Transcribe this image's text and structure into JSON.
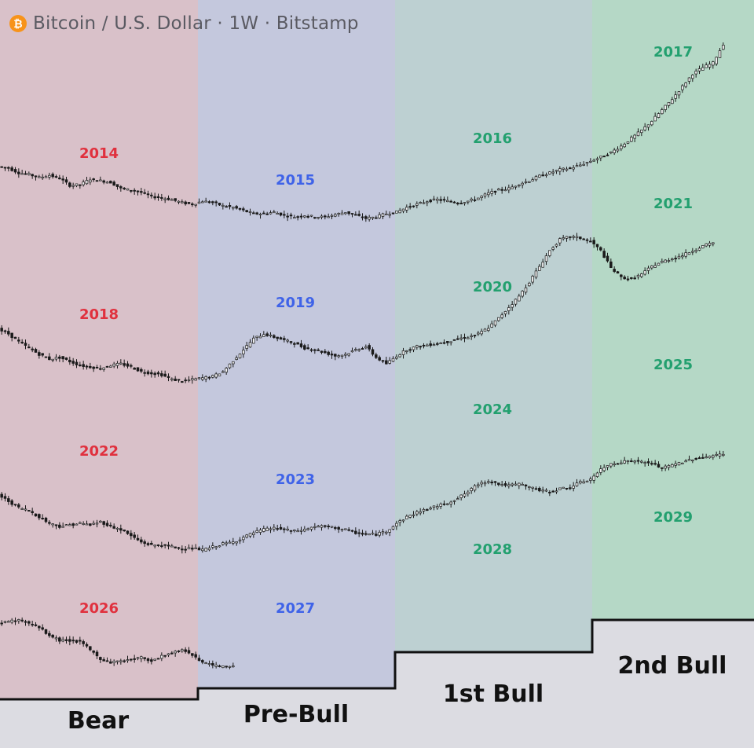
{
  "title": "Bitcoin / U.S. Dollar · 1W · Bitstamp",
  "icon": "bitcoin-icon",
  "colors": {
    "bear_bg": "#d9c1c9",
    "prebull_bg": "#c4c8dd",
    "bull1_bg": "#bdd0d2",
    "bull2_bg": "#b5d8c6",
    "base_bg": "#dcdce2",
    "bear_text": "#e0313e",
    "prebull_text": "#3f63e8",
    "bull_text": "#23a06f",
    "candle": "#1a1a1a"
  },
  "chart_data": {
    "type": "line",
    "x_axis": "week within the 4-year cycle",
    "phases": [
      {
        "name": "Bear",
        "color_key": "bear"
      },
      {
        "name": "Pre-Bull",
        "color_key": "prebull"
      },
      {
        "name": "1st Bull",
        "color_key": "bull1"
      },
      {
        "name": "2nd Bull",
        "color_key": "bull2"
      }
    ],
    "cycles": [
      {
        "years": [
          "2014",
          "2015",
          "2016",
          "2017"
        ],
        "series": [
          0.88,
          0.86,
          0.8,
          0.78,
          0.74,
          0.77,
          0.73,
          0.64,
          0.65,
          0.72,
          0.7,
          0.68,
          0.6,
          0.58,
          0.55,
          0.5,
          0.48,
          0.46,
          0.42,
          0.4,
          0.44,
          0.42,
          0.38,
          0.36,
          0.32,
          0.28,
          0.28,
          0.3,
          0.26,
          0.24,
          0.26,
          0.24,
          0.24,
          0.27,
          0.3,
          0.26,
          0.22,
          0.24,
          0.28,
          0.3,
          0.36,
          0.4,
          0.44,
          0.46,
          0.44,
          0.42,
          0.44,
          0.48,
          0.54,
          0.58,
          0.6,
          0.66,
          0.7,
          0.76,
          0.8,
          0.84,
          0.86,
          0.9,
          0.95,
          1.0,
          1.06,
          1.14,
          1.24,
          1.34,
          1.46,
          1.6,
          1.74,
          1.9,
          2.06,
          2.14,
          2.2,
          2.44
        ]
      },
      {
        "years": [
          "2018",
          "2019",
          "2020",
          "2021"
        ],
        "series": [
          0.96,
          0.9,
          0.8,
          0.72,
          0.64,
          0.58,
          0.6,
          0.55,
          0.5,
          0.48,
          0.46,
          0.5,
          0.52,
          0.48,
          0.42,
          0.4,
          0.38,
          0.32,
          0.3,
          0.32,
          0.34,
          0.36,
          0.42,
          0.56,
          0.7,
          0.84,
          0.9,
          0.86,
          0.82,
          0.78,
          0.72,
          0.7,
          0.66,
          0.62,
          0.64,
          0.7,
          0.74,
          0.6,
          0.52,
          0.62,
          0.7,
          0.74,
          0.76,
          0.78,
          0.8,
          0.84,
          0.86,
          0.9,
          0.98,
          1.1,
          1.24,
          1.38,
          1.56,
          1.76,
          1.96,
          2.1,
          2.14,
          2.12,
          2.08,
          1.96,
          1.74,
          1.62,
          1.6,
          1.66,
          1.76,
          1.82,
          1.86,
          1.9,
          1.96,
          2.02,
          2.06
        ]
      },
      {
        "years": [
          "2022",
          "2023",
          "2024",
          "2025"
        ],
        "series": [
          1.0,
          0.92,
          0.84,
          0.8,
          0.72,
          0.64,
          0.6,
          0.62,
          0.64,
          0.62,
          0.66,
          0.6,
          0.56,
          0.48,
          0.4,
          0.36,
          0.36,
          0.34,
          0.32,
          0.32,
          0.3,
          0.34,
          0.38,
          0.4,
          0.46,
          0.52,
          0.56,
          0.58,
          0.56,
          0.54,
          0.56,
          0.6,
          0.6,
          0.58,
          0.56,
          0.52,
          0.5,
          0.5,
          0.54,
          0.64,
          0.72,
          0.78,
          0.82,
          0.86,
          0.9,
          0.96,
          1.04,
          1.14,
          1.18,
          1.14,
          1.12,
          1.14,
          1.1,
          1.06,
          1.04,
          1.08,
          1.1,
          1.16,
          1.2,
          1.32,
          1.4,
          1.42,
          1.44,
          1.42,
          1.4,
          1.34,
          1.38,
          1.42,
          1.46,
          1.48,
          1.5,
          1.52
        ]
      },
      {
        "years": [
          "2026",
          "2027",
          "2028",
          "2029"
        ],
        "series": [
          0.62,
          0.64,
          0.66,
          0.62,
          0.56,
          0.46,
          0.4,
          0.4,
          0.38,
          0.28,
          0.16,
          0.12,
          0.14,
          0.16,
          0.18,
          0.14,
          0.2,
          0.24,
          0.28,
          0.22,
          0.12,
          0.08,
          0.06,
          0.08
        ]
      }
    ]
  },
  "year_labels": [
    {
      "text": "2014",
      "phase": "bear"
    },
    {
      "text": "2015",
      "phase": "prebull"
    },
    {
      "text": "2016",
      "phase": "bull1"
    },
    {
      "text": "2017",
      "phase": "bull2"
    },
    {
      "text": "2018",
      "phase": "bear"
    },
    {
      "text": "2019",
      "phase": "prebull"
    },
    {
      "text": "2020",
      "phase": "bull1"
    },
    {
      "text": "2021",
      "phase": "bull2"
    },
    {
      "text": "2022",
      "phase": "bear"
    },
    {
      "text": "2023",
      "phase": "prebull"
    },
    {
      "text": "2024",
      "phase": "bull1"
    },
    {
      "text": "2025",
      "phase": "bull2"
    },
    {
      "text": "2026",
      "phase": "bear"
    },
    {
      "text": "2027",
      "phase": "prebull"
    },
    {
      "text": "2028",
      "phase": "bull1"
    },
    {
      "text": "2029",
      "phase": "bull2"
    }
  ],
  "phase_labels": {
    "bear": "Bear",
    "prebull": "Pre-Bull",
    "bull1": "1st Bull",
    "bull2": "2nd Bull"
  }
}
